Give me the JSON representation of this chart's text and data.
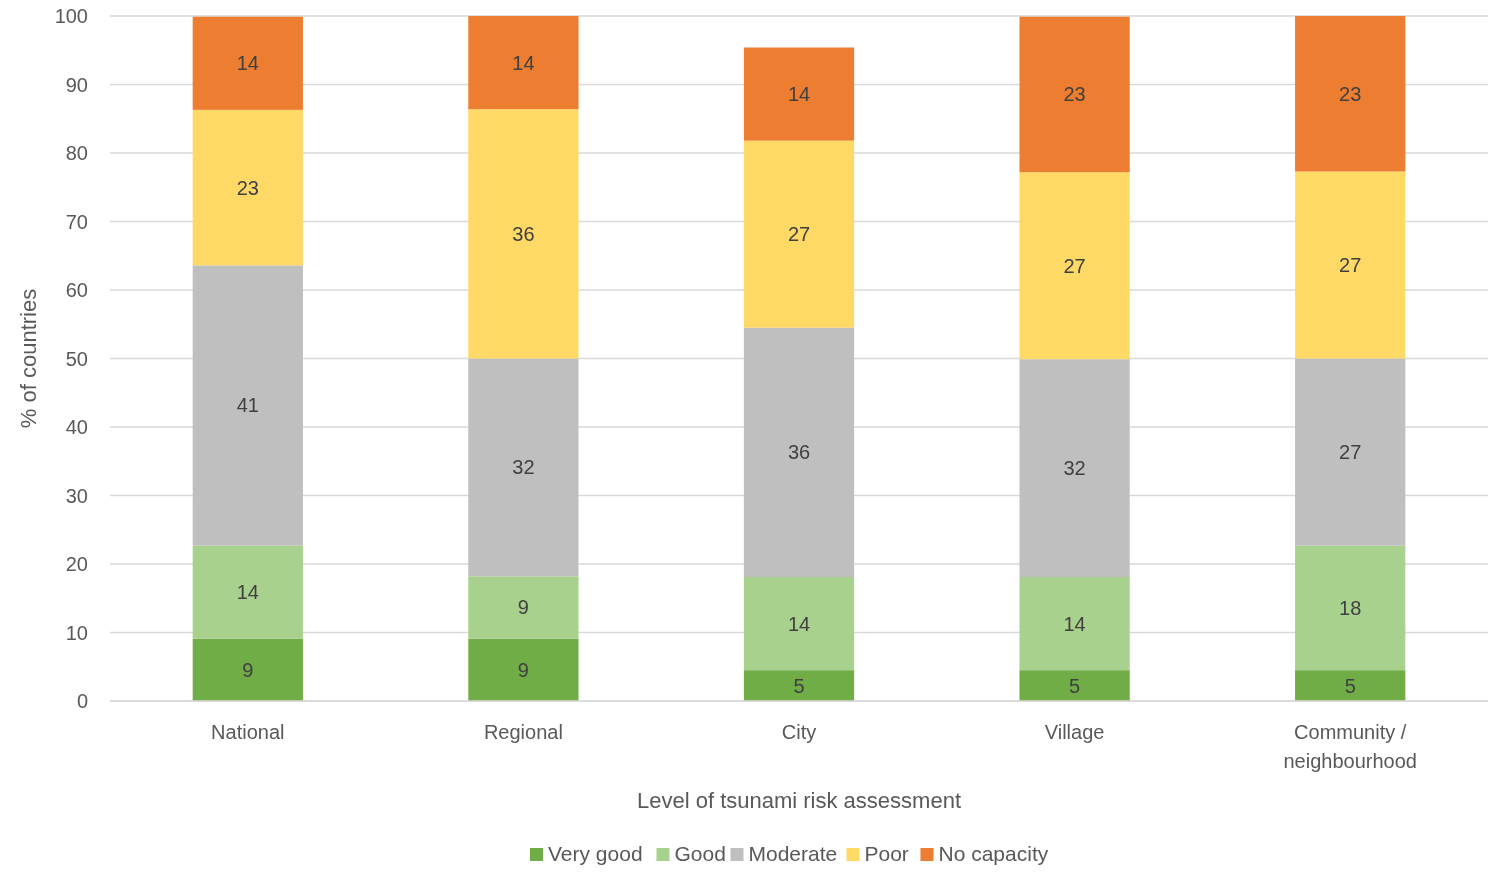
{
  "chart_data": {
    "type": "bar",
    "stacked": true,
    "xlabel": "Level of tsunami risk assessment",
    "ylabel": "% of countries",
    "categories": [
      "National",
      "Regional",
      "City",
      "Village",
      "Community / neighbourhood"
    ],
    "series": [
      {
        "name": "Very good",
        "color": "#70ad47",
        "values": [
          9.1,
          9.1,
          4.5,
          4.5,
          4.5
        ],
        "value_labels": [
          "9",
          "9",
          "5",
          "5",
          "5"
        ]
      },
      {
        "name": "Good",
        "color": "#a9d18e",
        "values": [
          13.6,
          9.1,
          13.6,
          13.6,
          18.2
        ],
        "value_labels": [
          "14",
          "9",
          "14",
          "14",
          "18"
        ]
      },
      {
        "name": "Moderate",
        "color": "#bfbfbf",
        "values": [
          40.9,
          31.8,
          36.4,
          31.8,
          27.3
        ],
        "value_labels": [
          "41",
          "32",
          "36",
          "32",
          "27"
        ]
      },
      {
        "name": "Poor",
        "color": "#ffd966",
        "values": [
          22.7,
          36.4,
          27.3,
          27.3,
          27.3
        ],
        "value_labels": [
          "23",
          "36",
          "27",
          "27",
          "27"
        ]
      },
      {
        "name": "No capacity",
        "color": "#ed7d31",
        "values": [
          13.6,
          13.6,
          13.6,
          22.7,
          22.7
        ],
        "value_labels": [
          "14",
          "14",
          "14",
          "23",
          "23"
        ]
      }
    ],
    "ylim": [
      0,
      100
    ],
    "yticks": [
      0,
      10,
      20,
      30,
      40,
      50,
      60,
      70,
      80,
      90,
      100
    ],
    "grid": "y",
    "legend": "bottom"
  }
}
